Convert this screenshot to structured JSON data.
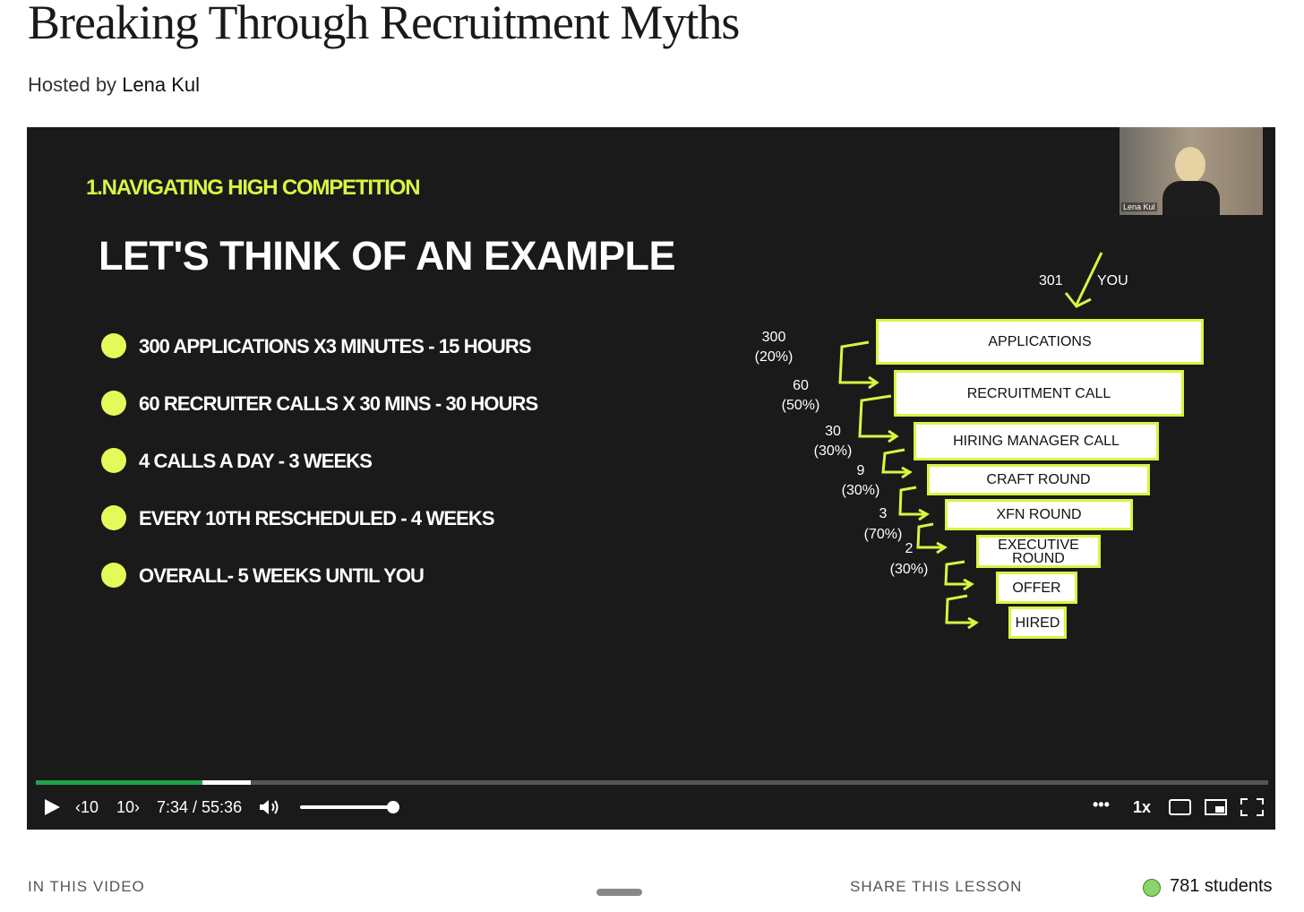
{
  "header": {
    "title": "Breaking Through Recruitment Myths",
    "hosted_by": "Hosted by",
    "host": "Lena Kul"
  },
  "slide": {
    "section": "1.NAVIGATING HIGH COMPETITION",
    "heading": "LET'S THINK OF AN EXAMPLE",
    "bullets": [
      "300 APPLICATIONS X3 MINUTES - 15 HOURS",
      "60 RECRUITER CALLS X 30 MINS - 30 HOURS",
      "4 CALLS A DAY - 3 WEEKS",
      "EVERY 10TH RESCHEDULED - 4 WEEKS",
      "OVERALL- 5 WEEKS UNTIL YOU"
    ],
    "funnel": {
      "start_count": "301",
      "start_label": "YOU",
      "stages": [
        "APPLICATIONS",
        "RECRUITMENT CALL",
        "HIRING MANAGER CALL",
        "CRAFT ROUND",
        "XFN ROUND",
        "EXECUTIVE ROUND",
        "OFFER",
        "HIRED"
      ],
      "transitions": [
        {
          "count": "300",
          "rate": "(20%)"
        },
        {
          "count": "60",
          "rate": "(50%)"
        },
        {
          "count": "30",
          "rate": "(30%)"
        },
        {
          "count": "9",
          "rate": "(30%)"
        },
        {
          "count": "3",
          "rate": "(70%)"
        },
        {
          "count": "2",
          "rate": "(30%)"
        }
      ]
    }
  },
  "webcam": {
    "name": "Lena Kul"
  },
  "player": {
    "rewind": "10",
    "forward": "10",
    "time": "7:34 / 55:36",
    "speed": "1x"
  },
  "footer": {
    "in_video": "IN THIS VIDEO",
    "share": "SHARE THIS LESSON",
    "students": "781 students"
  }
}
